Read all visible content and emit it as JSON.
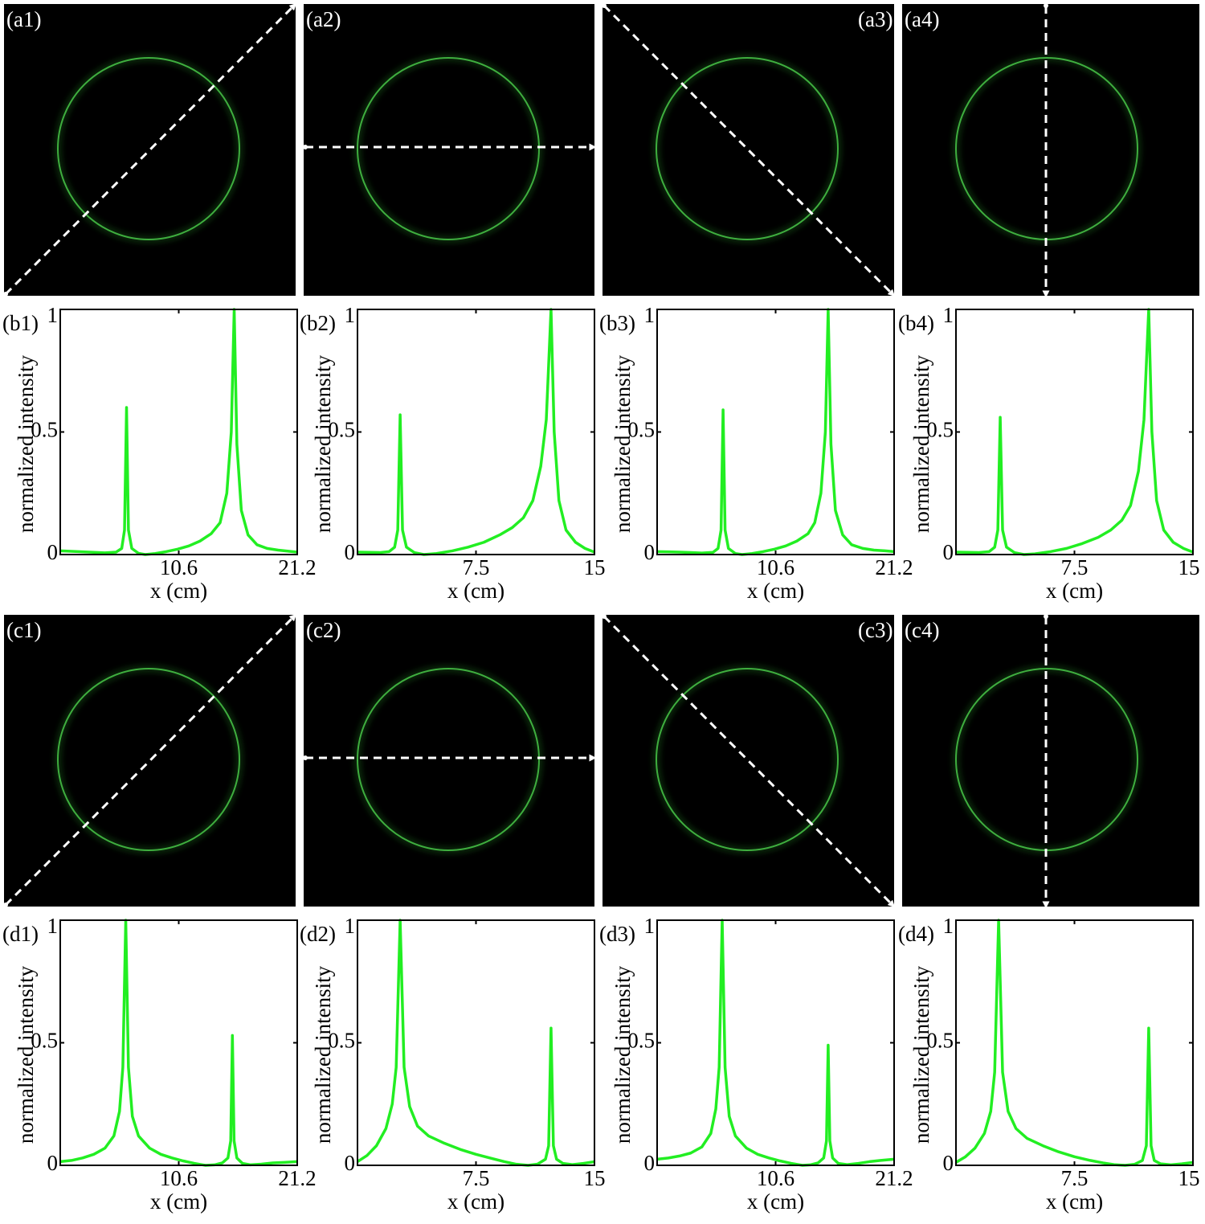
{
  "panels": [
    {
      "label": "(a1)"
    },
    {
      "label": "(a2)"
    },
    {
      "label": "(a3)"
    },
    {
      "label": "(a4)"
    },
    {
      "label": "(c1)"
    },
    {
      "label": "(c2)"
    },
    {
      "label": "(c3)"
    },
    {
      "label": "(c4)"
    }
  ],
  "chart_data": [
    {
      "type": "line",
      "label": "(b1)",
      "xlabel": "x (cm)",
      "ylabel": "normalized intensity",
      "color": "#22ee22",
      "xlim": [
        0,
        21.2
      ],
      "xticks": [
        10.6,
        21.2
      ],
      "ylim": [
        0,
        1
      ],
      "yticks": [
        0,
        0.5,
        1
      ],
      "x": [
        0,
        1,
        2,
        3,
        4,
        5,
        5.5,
        5.75,
        5.93,
        6.1,
        6.4,
        7,
        7.6,
        8.5,
        9.5,
        10.5,
        11.5,
        12.5,
        13.5,
        14.3,
        14.9,
        15.3,
        15.56,
        15.8,
        16.2,
        16.8,
        17.6,
        18.5,
        19.5,
        20.5,
        21.2
      ],
      "values": [
        0.015,
        0.013,
        0.011,
        0.009,
        0.007,
        0.01,
        0.025,
        0.1,
        0.6,
        0.1,
        0.025,
        0.005,
        0,
        0.004,
        0.012,
        0.022,
        0.035,
        0.055,
        0.085,
        0.13,
        0.25,
        0.5,
        1,
        0.45,
        0.18,
        0.08,
        0.04,
        0.025,
        0.018,
        0.013,
        0.01
      ]
    },
    {
      "type": "line",
      "label": "(b2)",
      "xlabel": "x (cm)",
      "ylabel": "normalized intensity",
      "color": "#22ee22",
      "xlim": [
        0,
        15
      ],
      "xticks": [
        7.5,
        15
      ],
      "ylim": [
        0,
        1
      ],
      "yticks": [
        0,
        0.5,
        1
      ],
      "x": [
        0,
        0.7,
        1.4,
        2,
        2.35,
        2.55,
        2.7,
        2.85,
        3.1,
        3.6,
        4.2,
        5,
        6,
        7,
        8,
        9,
        9.8,
        10.5,
        11.1,
        11.6,
        11.95,
        12.25,
        12.45,
        12.75,
        13.2,
        13.8,
        14.4,
        15
      ],
      "values": [
        0.01,
        0.009,
        0.008,
        0.012,
        0.03,
        0.1,
        0.57,
        0.1,
        0.03,
        0.008,
        0,
        0.004,
        0.015,
        0.03,
        0.05,
        0.08,
        0.11,
        0.15,
        0.22,
        0.36,
        0.55,
        1,
        0.5,
        0.22,
        0.1,
        0.05,
        0.025,
        0.01
      ]
    },
    {
      "type": "line",
      "label": "(b3)",
      "xlabel": "x (cm)",
      "ylabel": "normalized intensity",
      "color": "#22ee22",
      "xlim": [
        0,
        21.2
      ],
      "xticks": [
        10.6,
        21.2
      ],
      "ylim": [
        0,
        1
      ],
      "yticks": [
        0,
        0.5,
        1
      ],
      "x": [
        0,
        1,
        2,
        3,
        4,
        5,
        5.45,
        5.72,
        5.9,
        6.08,
        6.38,
        7,
        7.6,
        8.5,
        9.5,
        10.5,
        11.5,
        12.5,
        13.5,
        14.1,
        14.65,
        15.05,
        15.3,
        15.55,
        15.95,
        16.6,
        17.4,
        18.4,
        19.4,
        20.4,
        21.2
      ],
      "values": [
        0.012,
        0.011,
        0.01,
        0.008,
        0.006,
        0.009,
        0.025,
        0.1,
        0.59,
        0.1,
        0.025,
        0.004,
        0,
        0.004,
        0.012,
        0.022,
        0.035,
        0.055,
        0.085,
        0.13,
        0.25,
        0.5,
        1,
        0.45,
        0.18,
        0.08,
        0.04,
        0.025,
        0.018,
        0.015,
        0.012
      ]
    },
    {
      "type": "line",
      "label": "(b4)",
      "xlabel": "x (cm)",
      "ylabel": "normalized intensity",
      "color": "#22ee22",
      "xlim": [
        0,
        15
      ],
      "xticks": [
        7.5,
        15
      ],
      "ylim": [
        0,
        1
      ],
      "yticks": [
        0,
        0.5,
        1
      ],
      "x": [
        0,
        0.7,
        1.4,
        2.1,
        2.45,
        2.65,
        2.8,
        2.95,
        3.2,
        3.7,
        4.3,
        5,
        6,
        7,
        8,
        9,
        9.8,
        10.5,
        11.05,
        11.55,
        11.9,
        12.2,
        12.4,
        12.7,
        13.15,
        13.75,
        14.4,
        15
      ],
      "values": [
        0.01,
        0.009,
        0.008,
        0.012,
        0.03,
        0.1,
        0.56,
        0.1,
        0.03,
        0.008,
        0,
        0.003,
        0.012,
        0.025,
        0.045,
        0.07,
        0.1,
        0.14,
        0.2,
        0.34,
        0.55,
        1,
        0.5,
        0.22,
        0.1,
        0.05,
        0.025,
        0.01
      ]
    },
    {
      "type": "line",
      "label": "(d1)",
      "xlabel": "x (cm)",
      "ylabel": "normalized intensity",
      "color": "#22ee22",
      "xlim": [
        0,
        21.2
      ],
      "xticks": [
        10.6,
        21.2
      ],
      "ylim": [
        0,
        1
      ],
      "yticks": [
        0,
        0.5,
        1
      ],
      "x": [
        0,
        1,
        2,
        3,
        4,
        4.8,
        5.3,
        5.6,
        5.86,
        6.1,
        6.45,
        7,
        8,
        9,
        10,
        11,
        12,
        13,
        13.8,
        14.5,
        15,
        15.25,
        15.4,
        15.55,
        15.8,
        16.3,
        17,
        18,
        19,
        20,
        21.2
      ],
      "values": [
        0.015,
        0.02,
        0.03,
        0.045,
        0.07,
        0.12,
        0.22,
        0.4,
        1,
        0.4,
        0.2,
        0.12,
        0.07,
        0.045,
        0.03,
        0.018,
        0.008,
        0,
        0.002,
        0.01,
        0.03,
        0.1,
        0.53,
        0.1,
        0.03,
        0.008,
        0.002,
        0.005,
        0.01,
        0.012,
        0.015
      ]
    },
    {
      "type": "line",
      "label": "(d2)",
      "xlabel": "x (cm)",
      "ylabel": "normalized intensity",
      "color": "#22ee22",
      "xlim": [
        0,
        15
      ],
      "xticks": [
        7.5,
        15
      ],
      "ylim": [
        0,
        1
      ],
      "yticks": [
        0,
        0.5,
        1
      ],
      "x": [
        0,
        0.6,
        1.2,
        1.8,
        2.2,
        2.45,
        2.7,
        2.95,
        3.3,
        3.8,
        4.5,
        5.5,
        6.5,
        7.5,
        8.5,
        9.3,
        10,
        10.8,
        11.4,
        11.9,
        12.1,
        12.25,
        12.4,
        12.6,
        13,
        13.6,
        14.3,
        15
      ],
      "values": [
        0.015,
        0.04,
        0.08,
        0.15,
        0.25,
        0.4,
        1,
        0.4,
        0.24,
        0.16,
        0.12,
        0.09,
        0.065,
        0.045,
        0.028,
        0.015,
        0.005,
        0,
        0.005,
        0.025,
        0.08,
        0.56,
        0.08,
        0.025,
        0.008,
        0.003,
        0.008,
        0.015
      ]
    },
    {
      "type": "line",
      "label": "(d3)",
      "xlabel": "x (cm)",
      "ylabel": "normalized intensity",
      "color": "#22ee22",
      "xlim": [
        0,
        21.2
      ],
      "xticks": [
        10.6,
        21.2
      ],
      "ylim": [
        0,
        1
      ],
      "yticks": [
        0,
        0.5,
        1
      ],
      "x": [
        0,
        1,
        2,
        3,
        4,
        4.8,
        5.25,
        5.55,
        5.82,
        6.08,
        6.45,
        7,
        8,
        9,
        10,
        11,
        12,
        13,
        13.7,
        14.4,
        14.9,
        15.15,
        15.3,
        15.45,
        15.7,
        16.2,
        17,
        18,
        19,
        20,
        21.2
      ],
      "values": [
        0.025,
        0.03,
        0.038,
        0.05,
        0.075,
        0.13,
        0.23,
        0.4,
        1,
        0.4,
        0.2,
        0.12,
        0.07,
        0.045,
        0.03,
        0.018,
        0.008,
        0,
        0.002,
        0.01,
        0.03,
        0.1,
        0.49,
        0.1,
        0.03,
        0.008,
        0.003,
        0.008,
        0.015,
        0.02,
        0.025
      ]
    },
    {
      "type": "line",
      "label": "(d4)",
      "xlabel": "x (cm)",
      "ylabel": "normalized intensity",
      "color": "#22ee22",
      "xlim": [
        0,
        15
      ],
      "xticks": [
        7.5,
        15
      ],
      "ylim": [
        0,
        1
      ],
      "yticks": [
        0,
        0.5,
        1
      ],
      "x": [
        0,
        0.6,
        1.2,
        1.8,
        2.2,
        2.45,
        2.7,
        2.95,
        3.3,
        3.8,
        4.5,
        5.5,
        6.5,
        7.5,
        8.5,
        9.3,
        10,
        10.7,
        11.3,
        11.8,
        12.05,
        12.2,
        12.35,
        12.55,
        12.95,
        13.6,
        14.3,
        15
      ],
      "values": [
        0.012,
        0.035,
        0.07,
        0.13,
        0.22,
        0.38,
        1,
        0.38,
        0.22,
        0.15,
        0.11,
        0.08,
        0.055,
        0.035,
        0.02,
        0.01,
        0.003,
        0,
        0.004,
        0.02,
        0.08,
        0.56,
        0.08,
        0.02,
        0.006,
        0.002,
        0.006,
        0.012
      ]
    }
  ]
}
